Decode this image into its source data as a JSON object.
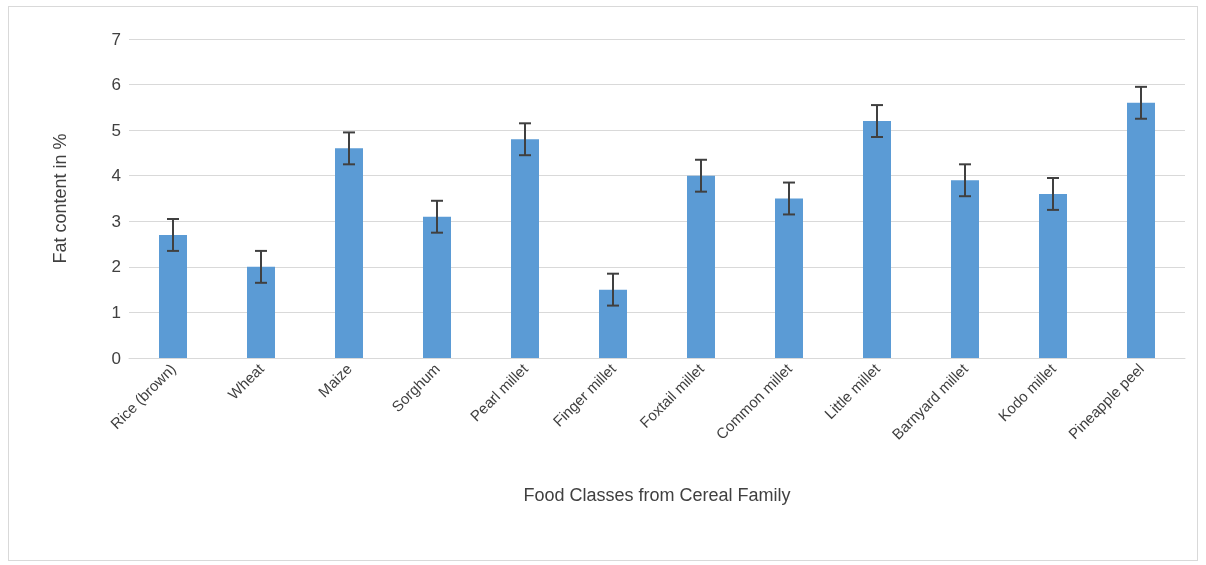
{
  "chart_data": {
    "type": "bar",
    "xlabel": "Food Classes from Cereal Family",
    "ylabel": "Fat content in %",
    "categories": [
      "Rice (brown)",
      "Wheat",
      "Maize",
      "Sorghum",
      "Pearl millet",
      "Finger millet",
      "Foxtail millet",
      "Common millet",
      "Little millet",
      "Barnyard millet",
      "Kodo millet",
      "Pineapple peel"
    ],
    "values": [
      2.7,
      2.0,
      4.6,
      3.1,
      4.8,
      1.5,
      4.0,
      3.5,
      5.2,
      3.9,
      3.6,
      5.6
    ],
    "errors": [
      0.35,
      0.35,
      0.35,
      0.35,
      0.35,
      0.35,
      0.35,
      0.35,
      0.35,
      0.35,
      0.35,
      0.35
    ],
    "color": "#5b9bd5",
    "ylim": [
      0,
      7
    ],
    "yticks": [
      0,
      1,
      2,
      3,
      4,
      5,
      6,
      7
    ],
    "grid": "y"
  }
}
